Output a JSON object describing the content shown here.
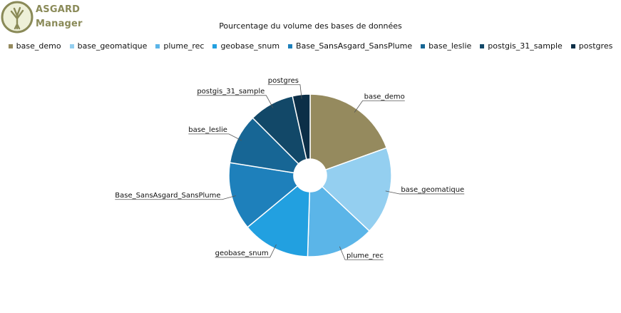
{
  "app": {
    "logo_line1": "ASGARD",
    "logo_line2": "Manager",
    "logo_color": "#8a8a58"
  },
  "chart_data": {
    "type": "pie",
    "title": "Pourcentage du volume des bases de données",
    "legend_placement": "top",
    "slices": [
      {
        "label": "base_demo",
        "value": 19.5,
        "color": "#958a5e"
      },
      {
        "label": "base_geomatique",
        "value": 17.5,
        "color": "#94cff0"
      },
      {
        "label": "plume_rec",
        "value": 13.5,
        "color": "#5bb5e8"
      },
      {
        "label": "geobase_snum",
        "value": 13.5,
        "color": "#22a0e0"
      },
      {
        "label": "Base_SansAsgard_SansPlume",
        "value": 13.5,
        "color": "#1e80bb"
      },
      {
        "label": "base_leslie",
        "value": 10.0,
        "color": "#176695"
      },
      {
        "label": "postgis_31_sample",
        "value": 9.0,
        "color": "#124868"
      },
      {
        "label": "postgres",
        "value": 3.5,
        "color": "#0c2f47"
      }
    ]
  }
}
